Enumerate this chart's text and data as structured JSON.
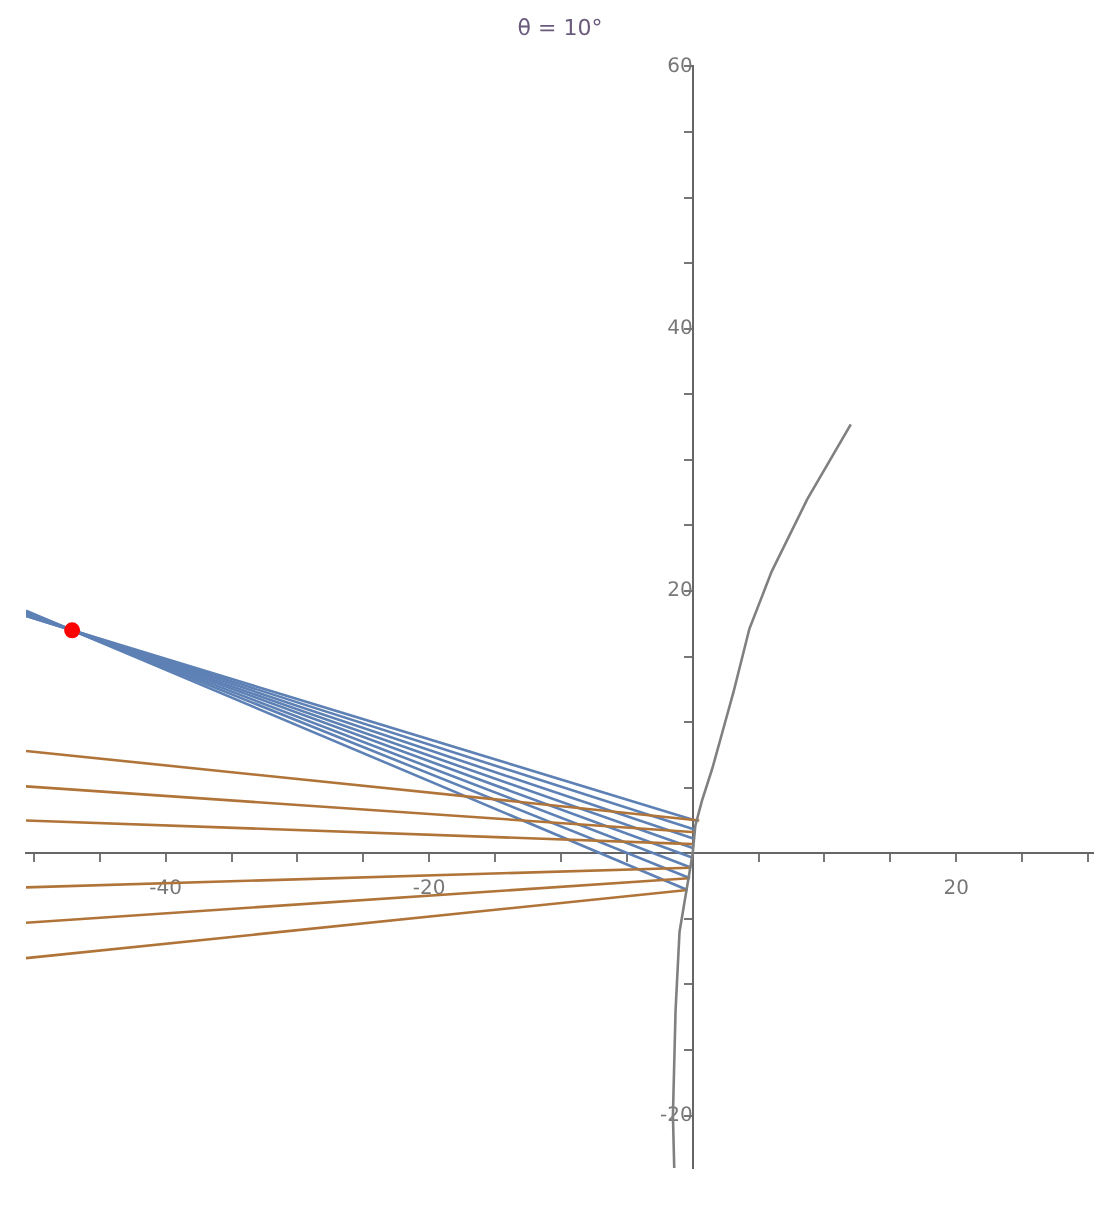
{
  "chart_data": {
    "type": "line",
    "title": "θ = 10°",
    "xlim": [
      -50.6,
      30.4
    ],
    "ylim": [
      -24,
      60
    ],
    "xticks": [
      {
        "value": -50,
        "label": null
      },
      {
        "value": -45,
        "label": null
      },
      -40,
      {
        "value": -35,
        "label": null
      },
      {
        "value": -30,
        "label": null
      },
      {
        "value": -25,
        "label": null
      },
      -20,
      {
        "value": -15,
        "label": null
      },
      {
        "value": -10,
        "label": null
      },
      {
        "value": -5,
        "label": null
      },
      {
        "value": 5,
        "label": null
      },
      {
        "value": 10,
        "label": null
      },
      {
        "value": 15,
        "label": null
      },
      20,
      {
        "value": 25,
        "label": null
      },
      {
        "value": 30,
        "label": null
      }
    ],
    "yticks": [
      -20,
      {
        "value": -15,
        "label": null
      },
      {
        "value": -10,
        "label": null
      },
      {
        "value": -5,
        "label": null
      },
      {
        "value": 5,
        "label": null
      },
      {
        "value": 10,
        "label": null
      },
      {
        "value": 15,
        "label": null
      },
      20,
      {
        "value": 25,
        "label": null
      },
      {
        "value": 30,
        "label": null
      },
      {
        "value": 35,
        "label": null
      },
      40,
      {
        "value": 45,
        "label": null
      },
      {
        "value": 50,
        "label": null
      },
      {
        "value": 55,
        "label": null
      },
      60
    ],
    "marker": "none",
    "series": [
      {
        "type": "line",
        "color": "#808080",
        "x": [
          12,
          8.7,
          6,
          4.3,
          3.1,
          2.3,
          1.5,
          0.7,
          0.2,
          0,
          -0.5,
          -1,
          -1.3,
          -1.5,
          -1.4
        ],
        "values": [
          32.7,
          27,
          21.5,
          17.1,
          12.3,
          9.4,
          6.5,
          4,
          2.1,
          0,
          -3,
          -6,
          -12,
          -20,
          -24
        ]
      },
      {
        "type": "line",
        "color": "#b07438",
        "x": [
          -50.6,
          0.5
        ],
        "values": [
          7.8,
          2.5
        ]
      },
      {
        "type": "line",
        "color": "#b07438",
        "x": [
          -50.6,
          0.2
        ],
        "values": [
          5.1,
          1.6
        ]
      },
      {
        "type": "line",
        "color": "#b07438",
        "x": [
          -50.6,
          0
        ],
        "values": [
          2.5,
          0.7
        ]
      },
      {
        "type": "line",
        "color": "#b07438",
        "x": [
          -50.6,
          -0.2
        ],
        "values": [
          -2.6,
          -1.1
        ]
      },
      {
        "type": "line",
        "color": "#b07438",
        "x": [
          -50.6,
          -0.3
        ],
        "values": [
          -5.3,
          -1.9
        ]
      },
      {
        "type": "line",
        "color": "#b07438",
        "x": [
          -50.6,
          -0.4
        ],
        "values": [
          -8,
          -2.8
        ]
      },
      {
        "type": "line",
        "color": "#5e81b5",
        "x": [
          0.2,
          -47.1,
          -50.6
        ],
        "values": [
          2.5,
          17,
          18.1
        ]
      },
      {
        "type": "line",
        "color": "#5e81b5",
        "x": [
          0.2,
          -47.1,
          -50.6
        ],
        "values": [
          1.8,
          17,
          18.1
        ]
      },
      {
        "type": "line",
        "color": "#5e81b5",
        "x": [
          0.1,
          -47.1,
          -50.6
        ],
        "values": [
          1.1,
          17,
          18.2
        ]
      },
      {
        "type": "line",
        "color": "#5e81b5",
        "x": [
          0,
          -47.1,
          -50.6
        ],
        "values": [
          0.4,
          17,
          18.2
        ]
      },
      {
        "type": "line",
        "color": "#5e81b5",
        "x": [
          -0.1,
          -47.1,
          -50.6
        ],
        "values": [
          -0.3,
          17,
          18.3
        ]
      },
      {
        "type": "line",
        "color": "#5e81b5",
        "x": [
          -0.1,
          -47.1,
          -50.6
        ],
        "values": [
          -1.1,
          17,
          18.4
        ]
      },
      {
        "type": "line",
        "color": "#5e81b5",
        "x": [
          -0.2,
          -47.1,
          -50.6
        ],
        "values": [
          -1.9,
          17,
          18.4
        ]
      },
      {
        "type": "line",
        "color": "#5e81b5",
        "x": [
          -0.4,
          -47.1,
          -50.6
        ],
        "values": [
          -2.8,
          17,
          18.5
        ]
      },
      {
        "type": "scatter",
        "marker": "circle",
        "color": "#ff0000",
        "x": [
          -47.1
        ],
        "values": [
          17
        ]
      }
    ]
  }
}
